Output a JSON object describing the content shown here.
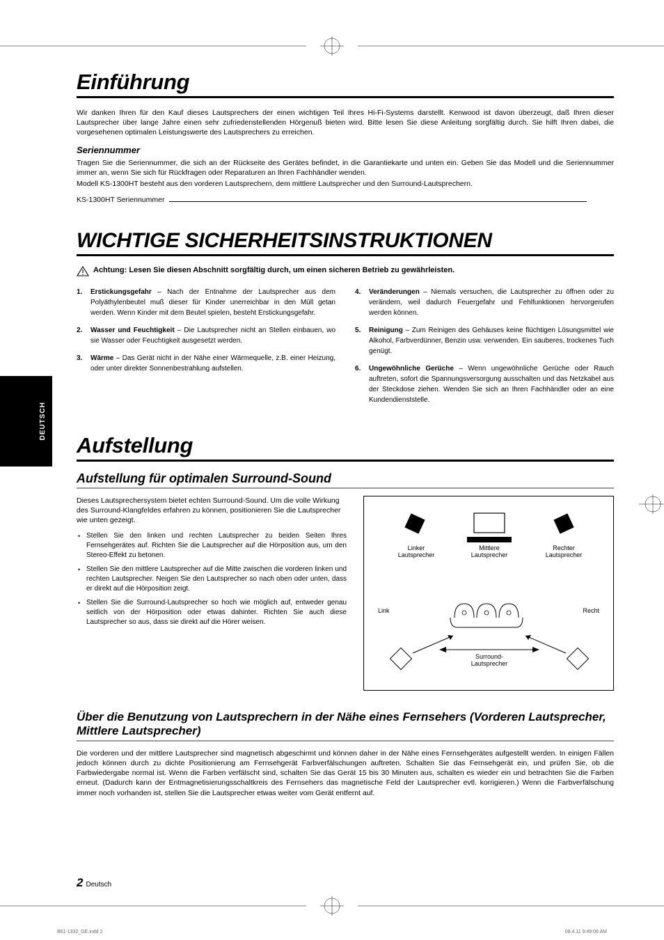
{
  "sideTab": "DEUTSCH",
  "intro": {
    "title": "Einführung",
    "para": "Wir danken Ihren für den Kauf dieses Lautsprechers der einen wichtigen Teil Ihres Hi-Fi-Systems darstellt. Kenwood ist davon überzeugt, daß Ihren dieser Lautsprecher über lange Jahre einen sehr zufriedenstellenden Hörgenuß bieten wird. Bitte lesen Sie diese Anleitung sorgfältig durch. Sie hilft Ihren dabei, die vorgesehenen optimalen Leistungswerte des Lautsprechers zu erreichen.",
    "serialHeading": "Seriennummer",
    "serialPara1": "Tragen Sie die Seriennummer, die sich an der Rückseite des Gerätes befindet, in die Garantiekarte und unten ein.  Geben Sie das Modell und die Seriennummer immer an, wenn Sie sich für Rückfragen oder Reparaturen an Ihren Fachhändler wenden.",
    "serialPara2": "Modell KS-1300HT besteht aus den vorderen Lautsprechern, dem mittlere Lautsprecher und den Surround-Lautsprechern.",
    "serialLabel": "KS-1300HT Seriennummer"
  },
  "safety": {
    "title": "WICHTIGE SICHERHEITSINSTRUKTIONEN",
    "warning": "Achtung:  Lesen Sie diesen Abschnitt sorgfältig durch, um einen sicheren Betrieb zu gewährleisten.",
    "left": [
      {
        "b": "Erstickungsgefahr",
        "t": " – Nach der Entnahme der Lautsprecher aus dem Polyäthylenbeutel muß dieser für Kinder unerreichbar in den Müll getan werden. Wenn Kinder mit dem Beutel spielen, besteht Erstickungsgefahr."
      },
      {
        "b": "Wasser und Feuchtigkeit",
        "t": " – Die Lautsprecher nicht an Stellen einbauen, wo sie Wasser oder Feuchtigkeit ausgesetzt werden."
      },
      {
        "b": "Wärme",
        "t": " – Das Gerät nicht in der Nähe einer Wärmequelle, z.B. einer Heizung, oder unter direkter Sonnenbestrahlung aufstellen."
      }
    ],
    "right": [
      {
        "b": "Veränderungen",
        "t": " – Niemals versuchen, die Lautsprecher zu öffnen oder zu verändern, weil dadurch Feuergefahr und Fehlfunktionen hervorgerufen werden können."
      },
      {
        "b": "Reinigung",
        "t": " – Zum Reinigen des Gehäuses keine flüchtigen Lösungsmittel wie Alkohol, Farbverdünner, Benzin usw. verwenden. Ein sauberes, trockenes Tuch genügt."
      },
      {
        "b": "Ungewöhnliche Gerüche",
        "t": " – Wenn ungewöhnliche Gerüche oder Rauch auftreten, sofort die Spannungsversorgung ausschalten und das Netzkabel aus der Steckdose ziehen. Wenden Sie sich an Ihren Fachhändler oder an eine Kundendienststelle."
      }
    ]
  },
  "setup": {
    "title": "Aufstellung",
    "sub1": "Aufstellung für optimalen Surround-Sound",
    "intro": "Dieses Lautsprechersystem bietet echten Surround-Sound. Um die volle Wirkung des Surround-Klangfeldes erfahren zu können, positionieren Sie die Lautsprecher wie unten gezeigt.",
    "bullets": [
      "Stellen Sie den linken und rechten Lautsprecher zu beiden Seiten Ihres Fernsehgerätes auf. Richten Sie die Lautsprecher auf die Hörposition aus, um den Stereo-Effekt zu betonen.",
      "Stellen Sie den mittlere Lautsprecher auf die Mitte zwischen die vorderen linken und rechten Lautsprecher. Neigen Sie den Lautsprecher so nach oben oder unten, dass er direkt auf die Hörposition zeigt.",
      "Stellen Sie die Surround-Lautsprecher so hoch wie möglich auf, entweder genau seitlich von der Hörposition oder etwas dahinter. Richten Sie auch diese Lautsprecher so aus, dass sie direkt auf die Hörer weisen."
    ],
    "diagram": {
      "leftSpk": "Linker\nLautsprecher",
      "centerSpk": "Mittlere\nLautsprecher",
      "rightSpk": "Rechter\nLautsprecher",
      "left": "Link",
      "right": "Recht",
      "surround": "Surround-\nLautsprecher"
    },
    "sub2": "Über die Benutzung von Lautsprechern in der Nähe eines Fernsehers (Vorderen Lautsprecher, Mittlere Lautsprecher)",
    "tvPara": "Die vorderen und der mittlere Lautsprecher sind magnetisch abgeschirmt und können daher in der Nähe eines Fernsehgerätes aufgestellt werden. In einigen Fällen jedoch können durch zu dichte Positionierung am Fernsehgerät Farbverfälschungen auftreten. Schalten Sie das Fernsehgerät ein, und prüfen Sie, ob die Farbwiedergabe normal ist. Wenn die Farben verfälscht sind, schalten Sie das Gerät 15 bis 30 Minuten aus, schalten es wieder ein und betrachten Sie die Farben erneut. (Dadurch kann der Entmagnetisierungsschaltkreis des Fernsehers das magnetische Feld der Lautsprecher evtl. korrigieren.) Wenn die Farbverfälschung immer noch vorhanden ist, stellen Sie die Lautsprecher etwas weiter vom Gerät entfernt auf."
  },
  "footer": {
    "num": "2",
    "lang": "Deutsch"
  },
  "imprint": {
    "left": "B61-1332_GE.indd   2",
    "right": "08.4.11   9:49:06 AM"
  }
}
